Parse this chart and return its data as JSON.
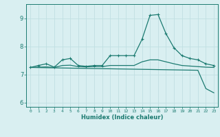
{
  "xlabel": "Humidex (Indice chaleur)",
  "xlim": [
    -0.5,
    23.5
  ],
  "ylim": [
    5.85,
    9.5
  ],
  "yticks": [
    6,
    7,
    8,
    9
  ],
  "xticks": [
    0,
    1,
    2,
    3,
    4,
    5,
    6,
    7,
    8,
    9,
    10,
    11,
    12,
    13,
    14,
    15,
    16,
    17,
    18,
    19,
    20,
    21,
    22,
    23
  ],
  "background_color": "#d9eff1",
  "grid_color": "#c0dfe2",
  "line_color": "#1b7a70",
  "line1_x": [
    0,
    1,
    2,
    3,
    4,
    5,
    6,
    7,
    8,
    9,
    10,
    11,
    12,
    13,
    14,
    15,
    16,
    17,
    18,
    19,
    20,
    21,
    22,
    23
  ],
  "line1_y": [
    7.25,
    7.32,
    7.38,
    7.26,
    7.52,
    7.57,
    7.32,
    7.29,
    7.32,
    7.32,
    7.67,
    7.67,
    7.67,
    7.67,
    8.25,
    9.1,
    9.13,
    8.45,
    7.95,
    7.67,
    7.57,
    7.52,
    7.38,
    7.32
  ],
  "line3_x": [
    0,
    21,
    22,
    23
  ],
  "line3_y": [
    7.25,
    7.15,
    6.5,
    6.35
  ],
  "line4_x": [
    0,
    1,
    2,
    3,
    4,
    5,
    6,
    7,
    8,
    9,
    10,
    11,
    12,
    13,
    14,
    15,
    16,
    17,
    18,
    19,
    20,
    21,
    22,
    23
  ],
  "line4_y": [
    7.25,
    7.26,
    7.27,
    7.25,
    7.32,
    7.33,
    7.28,
    7.27,
    7.28,
    7.28,
    7.32,
    7.32,
    7.32,
    7.32,
    7.45,
    7.52,
    7.52,
    7.45,
    7.38,
    7.32,
    7.3,
    7.28,
    7.26,
    7.25
  ]
}
